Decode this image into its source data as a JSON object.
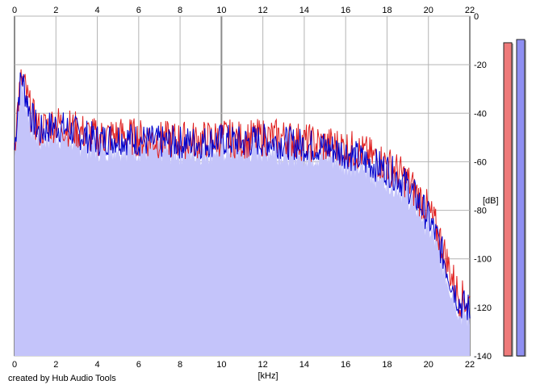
{
  "footer": {
    "credit": "created by Hub Audio Tools"
  },
  "chart_data": {
    "type": "area",
    "title": "",
    "xlabel": "[kHz]",
    "ylabel": "[dB]",
    "xlim": [
      0,
      22
    ],
    "ylim": [
      -140,
      0
    ],
    "x_ticks": [
      "0",
      "2",
      "4",
      "6",
      "8",
      "10",
      "12",
      "14",
      "16",
      "18",
      "20",
      "22"
    ],
    "y_ticks": [
      "0",
      "-20",
      "-40",
      "-60",
      "-80",
      "-100",
      "-120",
      "-140"
    ],
    "grid": true,
    "series": [
      {
        "color": "#e02020",
        "x": [
          0,
          0.2,
          0.35,
          0.5,
          0.8,
          1.2,
          1.6,
          2,
          3,
          4,
          5,
          6,
          7,
          8,
          9,
          10,
          11,
          12,
          13,
          14,
          15,
          16,
          17,
          18,
          18.5,
          19,
          19.5,
          20,
          20.5,
          21,
          21.5,
          22
        ],
        "y": [
          -52,
          -34,
          -26,
          -30,
          -40,
          -47,
          -45,
          -44,
          -47,
          -50,
          -49,
          -50,
          -51,
          -51,
          -51,
          -50,
          -51,
          -50,
          -50,
          -52,
          -53,
          -54,
          -57,
          -61,
          -64,
          -68,
          -74,
          -80,
          -90,
          -104,
          -116,
          -118
        ]
      },
      {
        "color": "#0000cc",
        "x": [
          0,
          0.2,
          0.35,
          0.5,
          0.8,
          1.2,
          1.6,
          2,
          3,
          4,
          5,
          6,
          7,
          8,
          9,
          10,
          11,
          12,
          13,
          14,
          15,
          16,
          17,
          18,
          18.5,
          19,
          19.5,
          20,
          20.5,
          21,
          21.5,
          22
        ],
        "y": [
          -55,
          -33,
          -24,
          -31,
          -41,
          -48,
          -46,
          -45,
          -48,
          -51,
          -50,
          -51,
          -52,
          -52,
          -52,
          -51,
          -52,
          -51,
          -52,
          -53,
          -54,
          -56,
          -60,
          -63,
          -66,
          -70,
          -76,
          -83,
          -93,
          -107,
          -118,
          -121
        ]
      }
    ],
    "level_bars": [
      {
        "color": "#ee7a7a",
        "level": 0.975
      },
      {
        "color": "#8f8ff2",
        "level": 0.985
      }
    ]
  }
}
